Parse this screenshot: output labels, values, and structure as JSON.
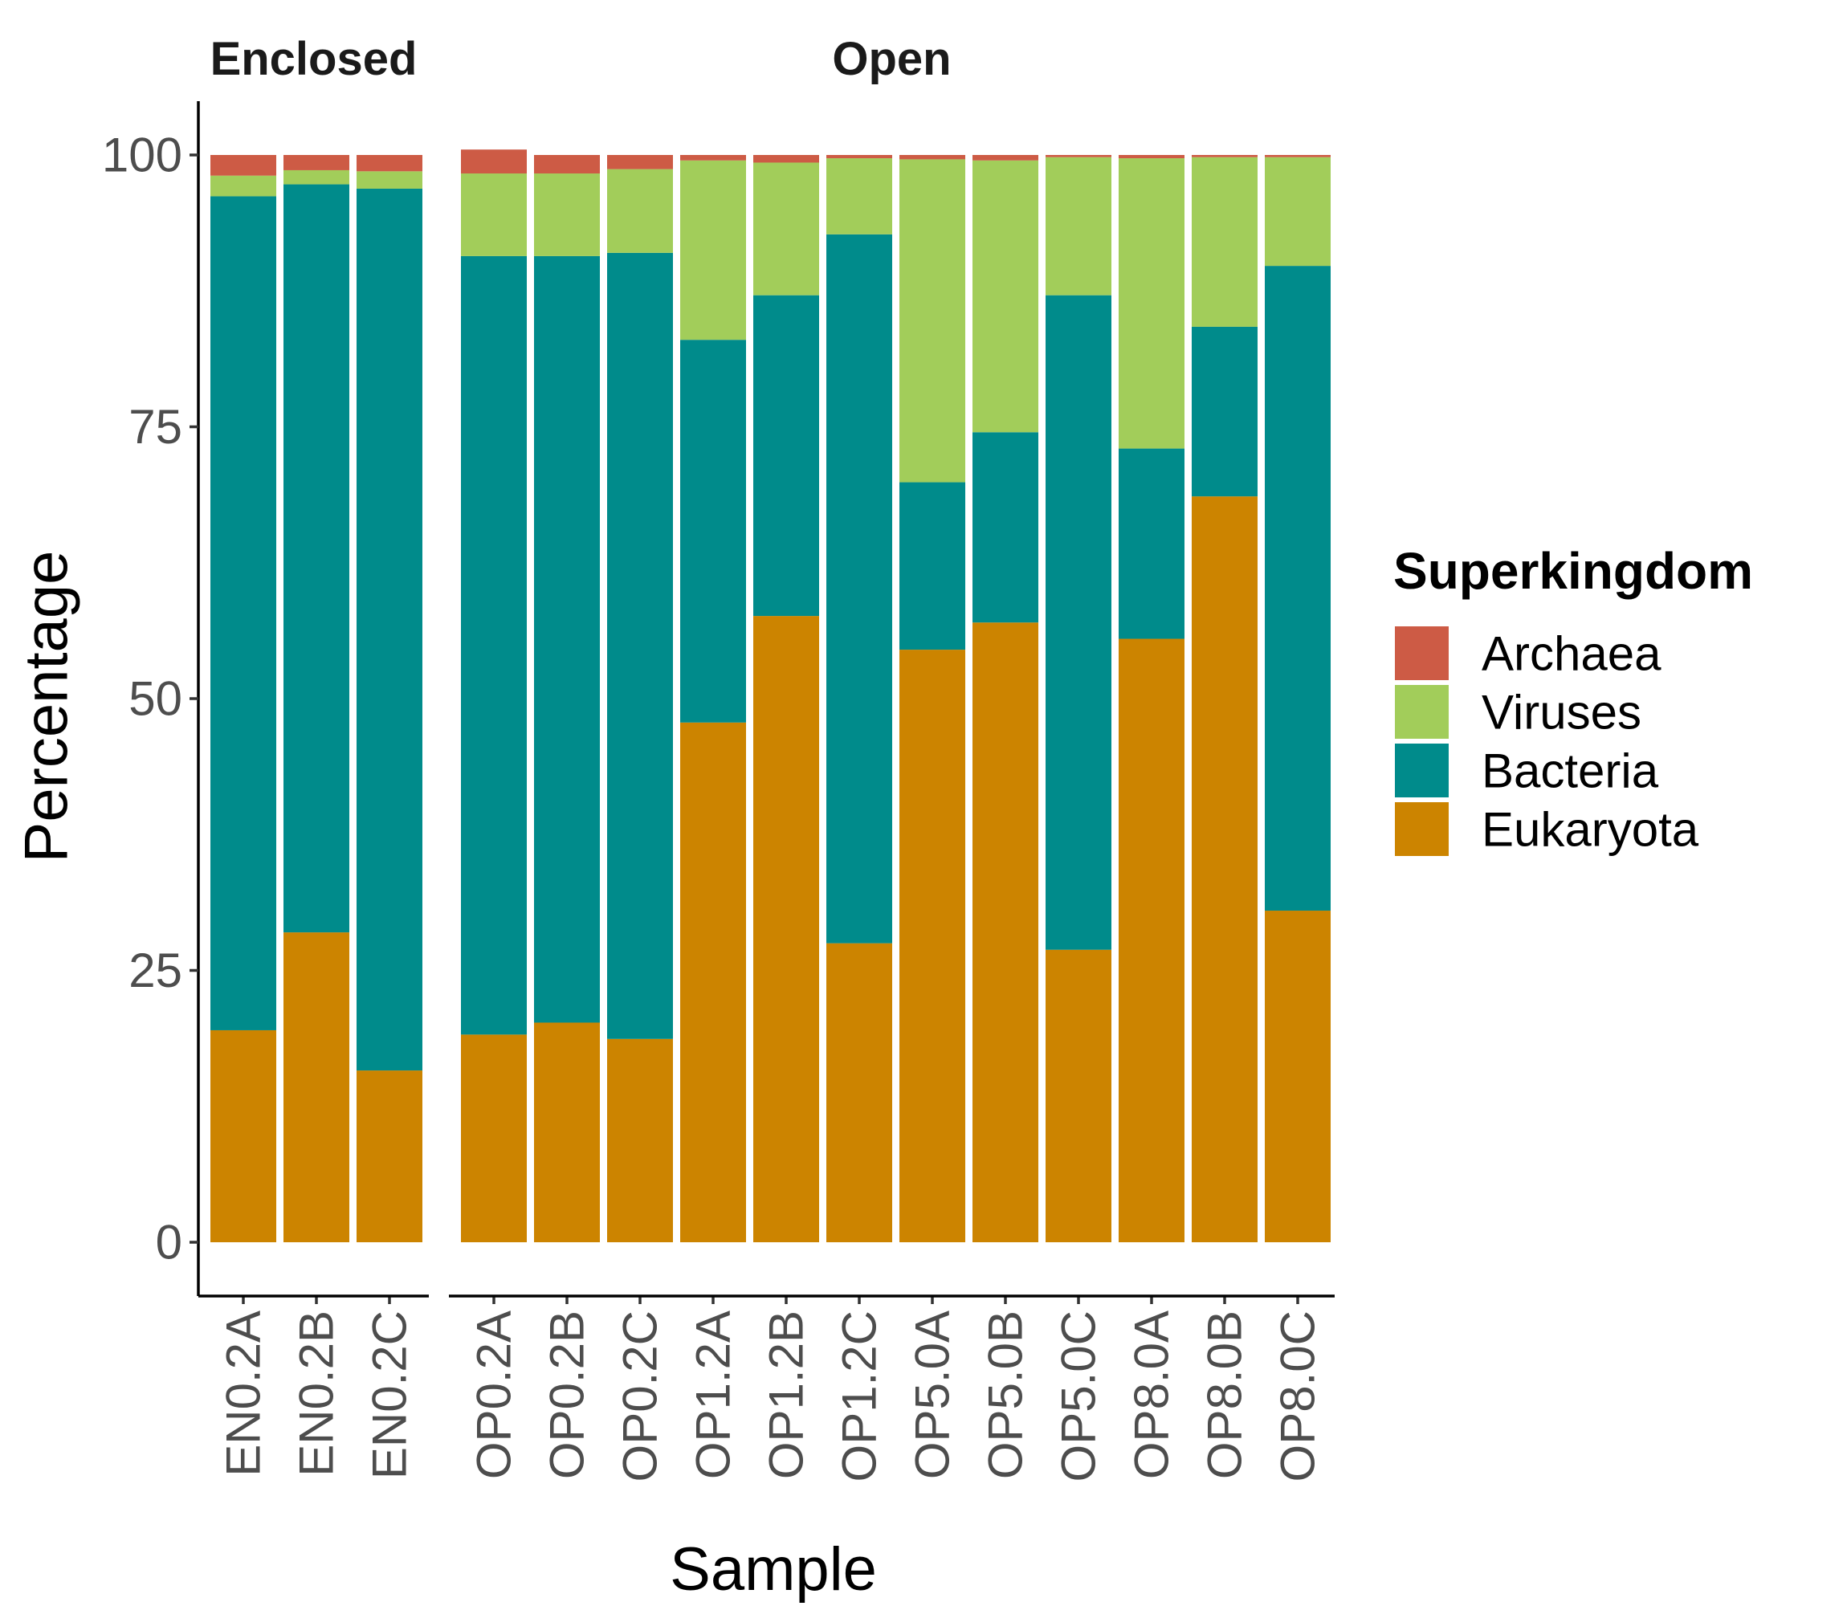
{
  "chart_data": {
    "type": "bar",
    "stacked": true,
    "xlabel": "Sample",
    "ylabel": "Percentage",
    "ylim": [
      0,
      100
    ],
    "yticks": [
      0,
      25,
      50,
      75,
      100
    ],
    "legend": {
      "title": "Superkingdom",
      "position": "right"
    },
    "panels": [
      {
        "title": "Enclosed",
        "categories": [
          "EN0.2A",
          "EN0.2B",
          "EN0.2C"
        ]
      },
      {
        "title": "Open",
        "categories": [
          "OP0.2A",
          "OP0.2B",
          "OP0.2C",
          "OP1.2A",
          "OP1.2B",
          "OP1.2C",
          "OP5.0A",
          "OP5.0B",
          "OP5.0C",
          "OP8.0A",
          "OP8.0B",
          "OP8.0C"
        ]
      }
    ],
    "series": [
      {
        "name": "Eukaryota",
        "color": "#CC8400",
        "values": [
          19.5,
          28.5,
          15.8,
          19.1,
          20.2,
          18.7,
          47.8,
          57.6,
          27.5,
          54.5,
          57.0,
          26.9,
          55.5,
          68.6,
          30.5
        ]
      },
      {
        "name": "Bacteria",
        "color": "#008B8B",
        "values": [
          76.7,
          68.8,
          81.1,
          71.6,
          70.5,
          72.3,
          35.2,
          29.5,
          65.2,
          15.4,
          17.5,
          60.2,
          17.5,
          15.6,
          59.3
        ]
      },
      {
        "name": "Viruses",
        "color": "#A2CD5A",
        "values": [
          1.9,
          1.3,
          1.6,
          7.6,
          7.6,
          7.7,
          16.5,
          12.2,
          7.0,
          29.7,
          25.0,
          12.7,
          26.7,
          15.6,
          10.0
        ]
      },
      {
        "name": "Archaea",
        "color": "#CD5B45",
        "values": [
          1.9,
          1.4,
          1.5,
          2.2,
          1.7,
          1.3,
          0.5,
          0.7,
          0.3,
          0.4,
          0.5,
          0.2,
          0.3,
          0.2,
          0.2
        ]
      }
    ],
    "legend_order": [
      "Archaea",
      "Viruses",
      "Bacteria",
      "Eukaryota"
    ]
  }
}
